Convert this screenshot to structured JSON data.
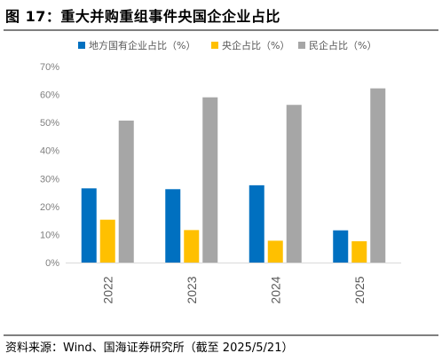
{
  "title": "图 17：重大并购重组事件央国企企业占比",
  "source": "资料来源：Wind、国海证券研究所（截至 2025/5/21）",
  "chart_data": {
    "type": "bar",
    "categories": [
      "2022",
      "2023",
      "2024",
      "2025"
    ],
    "series": [
      {
        "name": "地方国有企业占比（%）",
        "color": "#0070c0",
        "values": [
          26.5,
          26.2,
          27.6,
          11.5
        ]
      },
      {
        "name": "央企占比（%）",
        "color": "#ffc000",
        "values": [
          15.3,
          11.6,
          7.8,
          7.6
        ]
      },
      {
        "name": "民企占比（%）",
        "color": "#a6a6a6",
        "values": [
          50.7,
          59.0,
          56.3,
          62.2
        ]
      }
    ],
    "ylim": [
      0,
      70
    ],
    "yticks": [
      "0%",
      "10%",
      "20%",
      "30%",
      "40%",
      "50%",
      "60%",
      "70%"
    ],
    "legend": "top",
    "grid": false
  }
}
